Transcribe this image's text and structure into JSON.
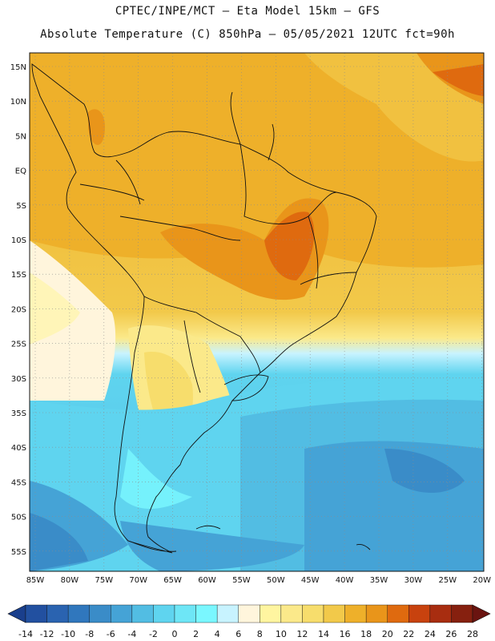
{
  "header": {
    "line1": "CPTEC/INPE/MCT —  Eta Model 15km — GFS",
    "line2": "Absolute Temperature (C) 850hPa — 05/05/2021 12UTC fct=90h"
  },
  "map": {
    "lat_labels": [
      "15N",
      "10N",
      "5N",
      "EQ",
      "5S",
      "10S",
      "15S",
      "20S",
      "25S",
      "30S",
      "35S",
      "40S",
      "45S",
      "50S",
      "55S"
    ],
    "lon_labels": [
      "85W",
      "80W",
      "75W",
      "70W",
      "65W",
      "60W",
      "55W",
      "50W",
      "45W",
      "40W",
      "35W",
      "30W",
      "25W",
      "20W"
    ]
  },
  "colorbar": {
    "labels": [
      "-14",
      "-12",
      "-10",
      "-8",
      "-6",
      "-4",
      "-2",
      "0",
      "2",
      "4",
      "6",
      "8",
      "10",
      "12",
      "14",
      "16",
      "18",
      "20",
      "22",
      "24",
      "26",
      "28"
    ],
    "colors": [
      "#1a3f8c",
      "#2250a0",
      "#2a63b0",
      "#3077bd",
      "#3a8cc8",
      "#45a3d6",
      "#52bde3",
      "#5fd4ef",
      "#6ee6f6",
      "#7af7ff",
      "#c8f3ff",
      "#fff5dc",
      "#fff5a0",
      "#fbe98a",
      "#f7dd6c",
      "#f2c94a",
      "#eeb02a",
      "#e9951a",
      "#df6a0f",
      "#c8420e",
      "#a82d10",
      "#86200f",
      "#6a1410"
    ]
  }
}
